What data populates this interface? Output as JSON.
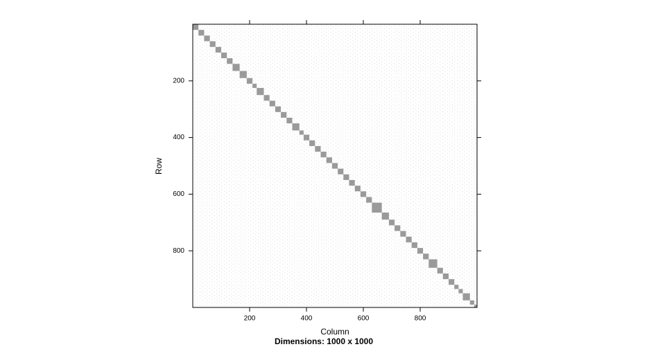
{
  "chart_data": {
    "type": "sparse-matrix-image",
    "title": "Dimensions: 1000 x 1000",
    "x_label": "Column",
    "y_label": "Row",
    "xlim": [
      0,
      1000
    ],
    "ylim": [
      0,
      1000
    ],
    "xticks": [
      200,
      400,
      600,
      800
    ],
    "yticks": [
      200,
      400,
      600,
      800
    ],
    "color": "#9a9a9a",
    "blocks": [
      [
        0,
        20
      ],
      [
        20,
        40
      ],
      [
        40,
        60
      ],
      [
        60,
        80
      ],
      [
        80,
        100
      ],
      [
        100,
        120
      ],
      [
        120,
        140
      ],
      [
        140,
        165
      ],
      [
        165,
        190
      ],
      [
        190,
        210
      ],
      [
        210,
        225
      ],
      [
        225,
        250
      ],
      [
        250,
        270
      ],
      [
        270,
        290
      ],
      [
        290,
        310
      ],
      [
        310,
        330
      ],
      [
        330,
        350
      ],
      [
        350,
        375
      ],
      [
        375,
        390
      ],
      [
        390,
        410
      ],
      [
        410,
        430
      ],
      [
        430,
        450
      ],
      [
        450,
        470
      ],
      [
        470,
        490
      ],
      [
        490,
        510
      ],
      [
        510,
        530
      ],
      [
        530,
        550
      ],
      [
        550,
        570
      ],
      [
        570,
        590
      ],
      [
        590,
        610
      ],
      [
        610,
        630
      ],
      [
        630,
        665
      ],
      [
        665,
        690
      ],
      [
        690,
        710
      ],
      [
        710,
        730
      ],
      [
        730,
        750
      ],
      [
        750,
        770
      ],
      [
        770,
        790
      ],
      [
        790,
        810
      ],
      [
        810,
        830
      ],
      [
        830,
        860
      ],
      [
        860,
        880
      ],
      [
        880,
        900
      ],
      [
        900,
        920
      ],
      [
        920,
        935
      ],
      [
        935,
        950
      ],
      [
        950,
        975
      ],
      [
        975,
        990
      ],
      [
        990,
        1000
      ]
    ]
  }
}
